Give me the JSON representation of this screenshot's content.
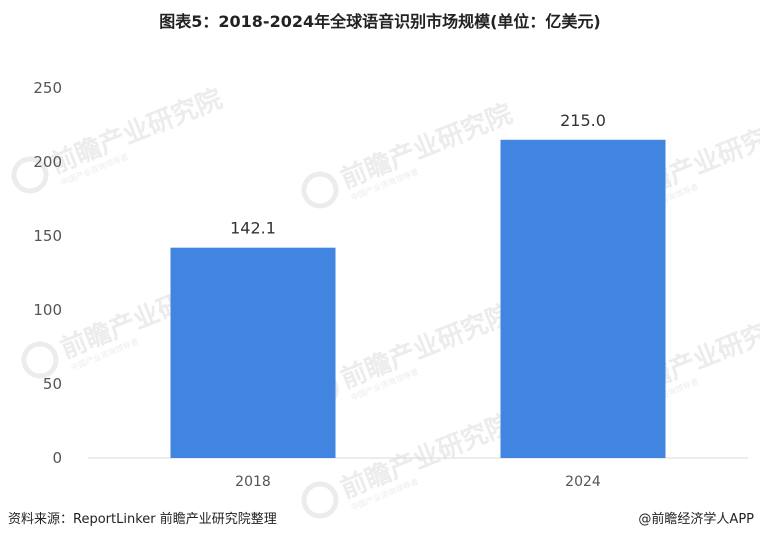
{
  "chart_data": {
    "type": "bar",
    "title": "图表5：2018-2024年全球语音识别市场规模(单位：亿美元)",
    "categories": [
      "2018",
      "2024"
    ],
    "values": [
      142.1,
      215.0
    ],
    "data_labels": [
      "142.1",
      "215.0"
    ],
    "ylim": [
      0,
      250
    ],
    "yticks": [
      "0",
      "50",
      "100",
      "150",
      "200",
      "250"
    ],
    "xlabel": "",
    "ylabel": "",
    "grid": false,
    "bar_color": "#4285e0"
  },
  "watermark": {
    "text": "前瞻产业研究院",
    "subtext": "中国产业咨询领导者"
  },
  "footer": {
    "source": "资料来源：ReportLinker 前瞻产业研究院整理",
    "brand": "@前瞻经济学人APP"
  }
}
